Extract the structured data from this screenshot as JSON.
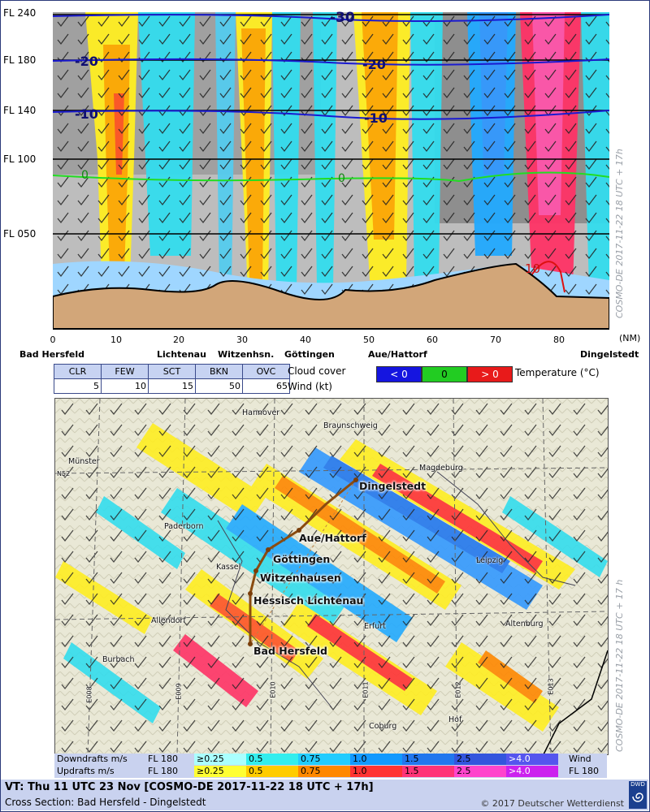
{
  "cross_section": {
    "fl_labels": [
      "FL 240",
      "FL 180",
      "FL 140",
      "FL 100",
      "FL 050"
    ],
    "x_ticks": [
      "0",
      "10",
      "20",
      "30",
      "40",
      "50",
      "60",
      "70",
      "80"
    ],
    "x_unit": "(NM)",
    "places": [
      "Bad Hersfeld",
      "Lichtenau",
      "Witzenhsn.",
      "Göttingen",
      "Aue/Hattorf",
      "Dingelstedt"
    ],
    "isotherm_labels": [
      "-30",
      "-20",
      "-20",
      "-10",
      "-10",
      "0",
      "0",
      "10"
    ],
    "side_text": "COSMO-DE 2017-11-22 18 UTC + 17h"
  },
  "cloud_cover_legend": {
    "headers": [
      "CLR",
      "FEW",
      "SCT",
      "BKN",
      "OVC"
    ],
    "wind_values": [
      "5",
      "10",
      "15",
      "50",
      "65"
    ],
    "cloud_label": "Cloud cover",
    "wind_label": "Wind (kt)"
  },
  "temperature_legend": {
    "label": "Temperature (°C)",
    "items": [
      {
        "text": "< 0",
        "color": "#1515e0"
      },
      {
        "text": "0",
        "color": "#22cc22"
      },
      {
        "text": "> 0",
        "color": "#e81a1a"
      }
    ]
  },
  "map": {
    "cities": [
      "Hannover",
      "Braunschweig",
      "Münster",
      "Magdeburg",
      "Paderborn",
      "Kassel",
      "Leipzig",
      "Allendorf",
      "Erfurt",
      "Altenburg",
      "Burbach",
      "Coburg",
      "Hof"
    ],
    "route_points": [
      "Dingelstedt",
      "Aue/Hattorf",
      "Göttingen",
      "Witzenhausen",
      "Hessisch Lichtenau",
      "Bad Hersfeld"
    ],
    "grid_labels": [
      "N52",
      "E008",
      "E009",
      "E010",
      "E011",
      "E012",
      "E013"
    ],
    "side_text": "COSMO-DE 2017-11-22 18 UTC + 17 h"
  },
  "draft_legend": {
    "downdrafts_label": "Downdrafts m/s",
    "updrafts_label": "Updrafts m/s",
    "level": "FL 180",
    "downdrafts": [
      {
        "text": "≥0.25",
        "color": "#aaffff"
      },
      {
        "text": "0.5",
        "color": "#33eeee"
      },
      {
        "text": "0.75",
        "color": "#22ccff"
      },
      {
        "text": "1.0",
        "color": "#1199ff"
      },
      {
        "text": "1.5",
        "color": "#2277ee"
      },
      {
        "text": "2.5",
        "color": "#3355dd"
      },
      {
        "text": ">4.0",
        "color": "#5555ee"
      }
    ],
    "updrafts": [
      {
        "text": "≥0.25",
        "color": "#ffff33"
      },
      {
        "text": "0.5",
        "color": "#ffcc00"
      },
      {
        "text": "0.75",
        "color": "#ff8800"
      },
      {
        "text": "1.0",
        "color": "#ff3333"
      },
      {
        "text": "1.5",
        "color": "#ff3377"
      },
      {
        "text": "2.5",
        "color": "#ff44cc"
      },
      {
        "text": ">4.0",
        "color": "#cc22ee"
      }
    ],
    "wind_label": "Wind",
    "wind_level": "FL 180"
  },
  "footer": {
    "vt": "VT: Thu 11 UTC 23 Nov [COSMO-DE 2017-11-22 18 UTC + 17h]",
    "cross_section": "Cross Section: Bad Hersfeld - Dingelstedt",
    "copyright": "© 2017 Deutscher Wetterdienst",
    "logo": "DWD"
  }
}
